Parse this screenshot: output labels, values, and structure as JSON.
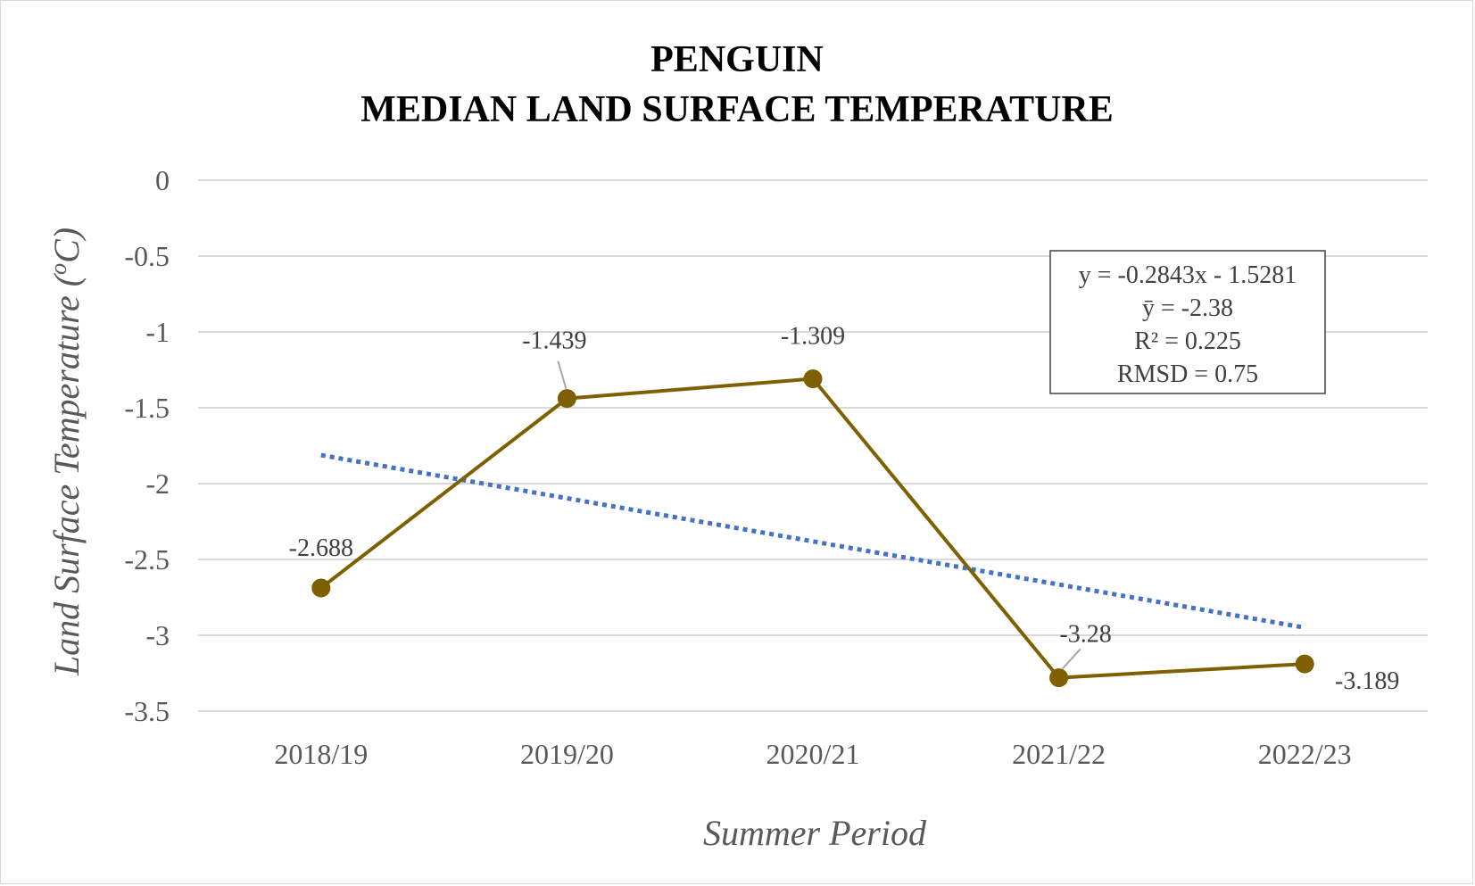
{
  "chart_data": {
    "type": "line",
    "title": [
      "PENGUIN",
      "MEDIAN LAND SURFACE TEMPERATURE"
    ],
    "xlabel": "Summer Period",
    "ylabel": "Land Surface Temperature (",
    "ylabel_sup": "o",
    "ylabel_end": "C)",
    "categories": [
      "2018/19",
      "2019/20",
      "2020/21",
      "2021/22",
      "2022/23"
    ],
    "series": [
      {
        "values": [
          -2.688,
          -1.439,
          -1.309,
          -3.28,
          -3.189
        ],
        "labels": [
          "-2.688",
          "-1.439",
          "-1.309",
          "-3.28",
          "-3.189"
        ],
        "color": "#7f6000"
      }
    ],
    "trendline": {
      "type": "linear",
      "style": "dotted",
      "color": "#4472c4",
      "values": [
        -1.8124,
        -2.0967,
        -2.381,
        -2.6653,
        -2.9496
      ]
    },
    "yticks": [
      "0",
      "-0.5",
      "-1",
      "-1.5",
      "-2",
      "-2.5",
      "-3",
      "-3.5"
    ],
    "ylim": [
      -3.5,
      0
    ],
    "grid": true,
    "stats_box": {
      "placement": "top-right",
      "lines": [
        "y = -0.2843x - 1.5281",
        "ȳ =  -2.38",
        "R² = 0.225",
        "RMSD = 0.75"
      ]
    }
  }
}
